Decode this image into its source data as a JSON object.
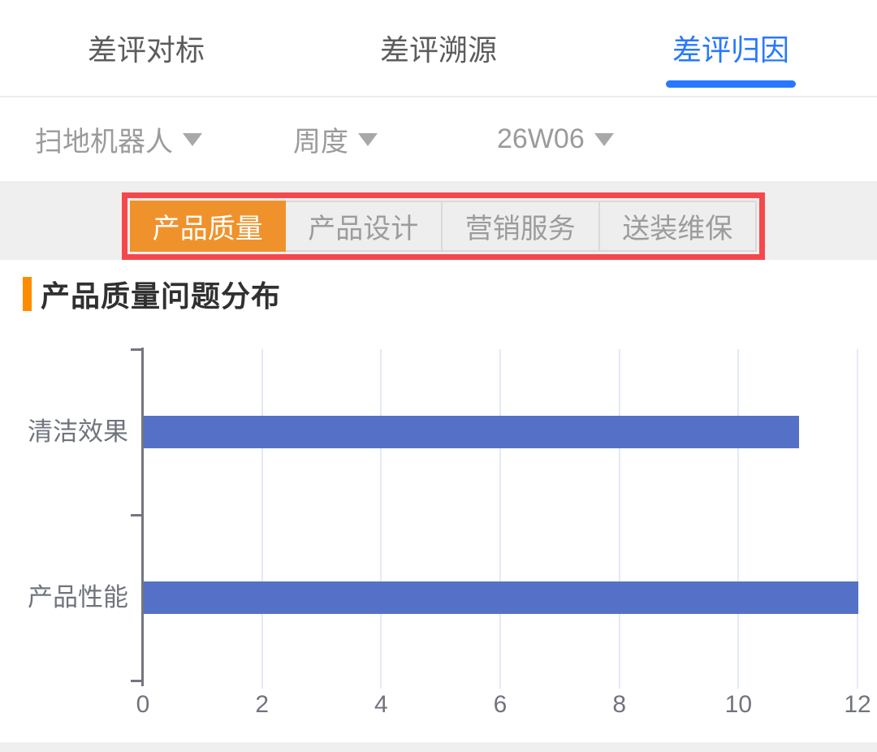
{
  "tabbar": {
    "tabs": [
      {
        "label": "差评对标",
        "active": false
      },
      {
        "label": "差评溯源",
        "active": false
      },
      {
        "label": "差评归因",
        "active": true
      }
    ],
    "active_color": "#2878ff"
  },
  "filters": {
    "items": [
      {
        "label": "扫地机器人"
      },
      {
        "label": "周度"
      },
      {
        "label": "26W06"
      }
    ]
  },
  "category_tabs": {
    "items": [
      {
        "label": "产品质量",
        "active": true
      },
      {
        "label": "产品设计",
        "active": false
      },
      {
        "label": "营销服务",
        "active": false
      },
      {
        "label": "送装维保",
        "active": false
      }
    ],
    "highlight_box_color": "#f5484d",
    "active_tab_color": "#f0922c"
  },
  "section": {
    "title": "产品质量问题分布",
    "accent_color": "#ff8c00"
  },
  "chart_data": {
    "type": "bar",
    "orientation": "horizontal",
    "title": "产品质量问题分布",
    "categories": [
      "清洁效果",
      "产品性能"
    ],
    "values": [
      11,
      12
    ],
    "xlabel": "",
    "ylabel": "",
    "xlim": [
      0,
      12
    ],
    "xticks": [
      0,
      2,
      4,
      6,
      8,
      10,
      12
    ],
    "grid": true,
    "legend": false,
    "bar_color": "#5571c7",
    "grid_color": "#e4e9f5",
    "axis_color": "#73767e",
    "label_color": "#70747e"
  },
  "colors": {
    "strip_bg": "#efefef",
    "inactive_text": "#5c5c5c",
    "filter_text": "#9b9b9b"
  }
}
